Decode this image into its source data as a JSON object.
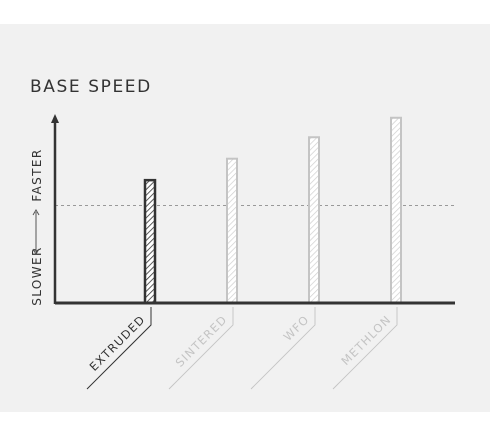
{
  "chart_data": {
    "type": "bar",
    "title": "BASE SPEED",
    "categories": [
      "EXTRUDED",
      "SINTERED",
      "WFO",
      "METHLON"
    ],
    "values": [
      63,
      74,
      85,
      95
    ],
    "highlighted_category": "EXTRUDED",
    "reference_line": 50,
    "ylim": [
      0,
      100
    ],
    "y_axis_words": {
      "low": "SLOWER",
      "high": "FASTER"
    },
    "grid": false,
    "legend": "none"
  },
  "colors": {
    "background": "#f1f1f1",
    "axis": "#333333",
    "highlight": "#333333",
    "muted": "#c4c4c4",
    "reference_line": "#999999"
  }
}
